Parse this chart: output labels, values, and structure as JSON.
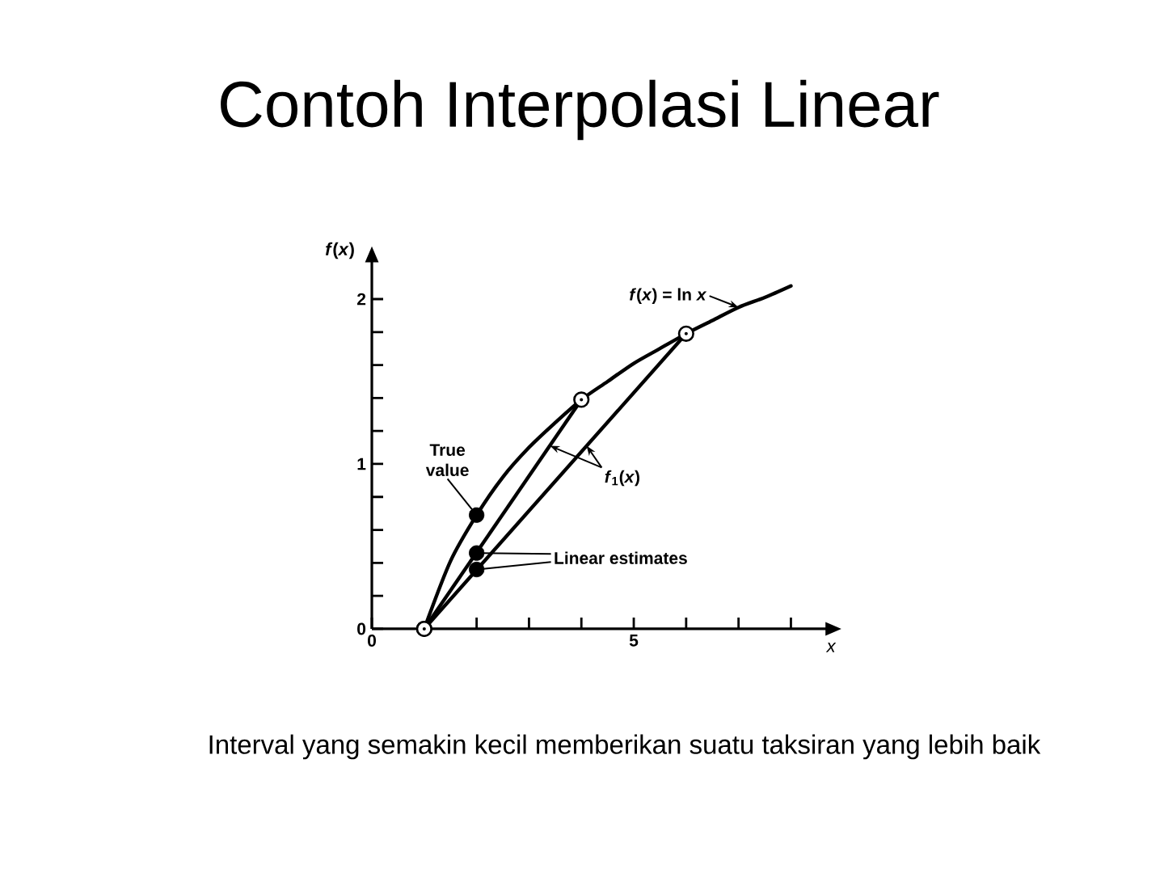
{
  "chart_data": {
    "type": "line",
    "title": "Contoh Interpolasi Linear",
    "xlabel": "x",
    "ylabel": "*f*(*x*)",
    "xlim": [
      0,
      8.9
    ],
    "ylim": [
      0,
      2.3
    ],
    "xticks": [
      0,
      {
        "value": 2,
        "label": null
      },
      {
        "value": 3,
        "label": null
      },
      {
        "value": 4,
        "label": null
      },
      5,
      {
        "value": 6,
        "label": null
      },
      {
        "value": 7,
        "label": null
      },
      {
        "value": 8,
        "label": null
      }
    ],
    "yticks": [
      0,
      {
        "value": 0.2,
        "label": null
      },
      {
        "value": 0.4,
        "label": null
      },
      {
        "value": 0.6,
        "label": null
      },
      {
        "value": 0.8,
        "label": null
      },
      1,
      {
        "value": 1.2,
        "label": null
      },
      {
        "value": 1.4,
        "label": null
      },
      {
        "value": 1.6,
        "label": null
      },
      {
        "value": 1.8,
        "label": null
      },
      2
    ],
    "series": [
      {
        "color": "#000000",
        "x": [
          1,
          1.5,
          2,
          2.5,
          3,
          3.5,
          4,
          4.5,
          5,
          5.5,
          6,
          6.5,
          7,
          7.5,
          8
        ],
        "values": [
          0,
          0.41,
          0.69,
          0.92,
          1.1,
          1.25,
          1.39,
          1.5,
          1.61,
          1.7,
          1.79,
          1.87,
          1.95,
          2.01,
          2.08
        ]
      },
      {
        "color": "#000000",
        "marker": "circle",
        "x": [
          1,
          4
        ],
        "values": [
          0,
          1.39
        ]
      },
      {
        "color": "#000000",
        "marker": "circle",
        "x": [
          1,
          6
        ],
        "values": [
          0,
          1.79
        ]
      },
      {
        "type": "scatter",
        "color": "#000000",
        "marker": "circle",
        "x": [
          2
        ],
        "values": [
          0.69
        ]
      },
      {
        "type": "scatter",
        "color": "#000000",
        "marker": "circle",
        "x": [
          2,
          2
        ],
        "values": [
          0.46,
          0.36
        ]
      }
    ],
    "annotations": [
      {
        "text": "*f*(*x*) = ln *x*",
        "x": 7,
        "y": 1.95
      },
      {
        "text": "True value",
        "x": 2,
        "y": 0.69
      },
      {
        "text": "Linear estimates",
        "x": 2,
        "y": 0.46
      },
      {
        "text": "*f*$_{1}$(*x*)",
        "x": 3.4,
        "y": 1.11
      },
      "Interval yang semakin kecil memberikan suatu taksiran yang lebih baik"
    ]
  }
}
